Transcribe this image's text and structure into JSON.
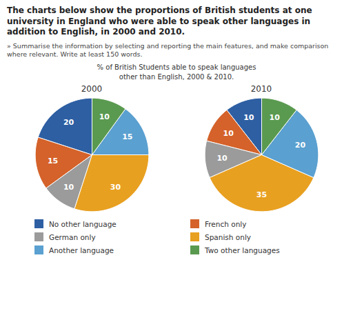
{
  "title": "The charts below show the proportions of British students at one\nuniversity in England who were able to speak other languages in\naddition to English, in 2000 and 2010.",
  "subtitle": "» Summarise the information by selecting and reporting the main features, and make comparison\nwhere relevant. Write at least 150 words.",
  "annotations": [
    "% of British Students able to speak languages",
    "other than English, 2000 & 2010."
  ],
  "chart_data": [
    {
      "type": "pie",
      "title": "2000",
      "categories": [
        "No other language",
        "French only",
        "German only",
        "Spanish only",
        "Another language",
        "Two other languages"
      ],
      "values": [
        20,
        15,
        10,
        30,
        15,
        10
      ],
      "colors": [
        "#2e5fa3",
        "#d4622a",
        "#9b9b9b",
        "#e8a020",
        "#5aa0d0",
        "#5a9a50"
      ],
      "data_labels": true,
      "legend": "bottom"
    },
    {
      "type": "pie",
      "title": "2010",
      "categories": [
        "No other language",
        "French only",
        "German only",
        "Spanish only",
        "Another language",
        "Two other languages"
      ],
      "values": [
        10,
        10,
        10,
        35,
        20,
        10
      ],
      "colors": [
        "#2e5fa3",
        "#d4622a",
        "#9b9b9b",
        "#e8a020",
        "#5aa0d0",
        "#5a9a50"
      ],
      "data_labels": true,
      "legend": "bottom"
    }
  ]
}
